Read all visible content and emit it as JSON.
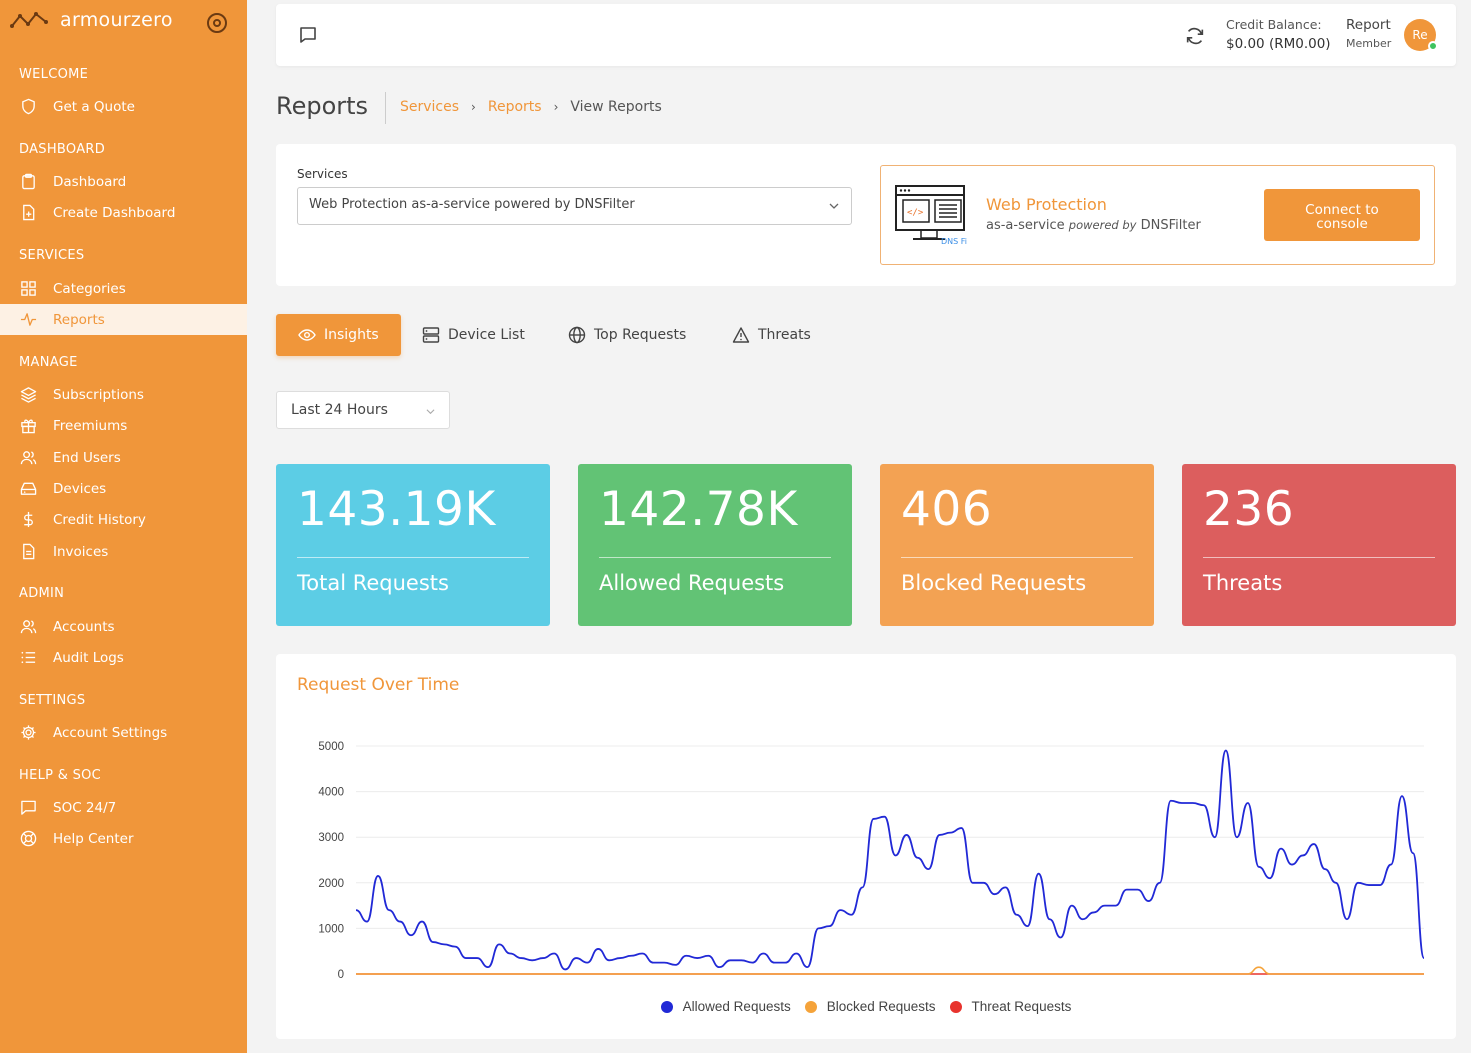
{
  "brand": {
    "name": "armourzero"
  },
  "sidebar": {
    "sections": [
      {
        "title": "WELCOME",
        "items": [
          {
            "label": "Get a Quote",
            "icon": "shield-icon"
          }
        ]
      },
      {
        "title": "DASHBOARD",
        "items": [
          {
            "label": "Dashboard",
            "icon": "clipboard-icon"
          },
          {
            "label": "Create Dashboard",
            "icon": "file-plus-icon"
          }
        ]
      },
      {
        "title": "SERVICES",
        "items": [
          {
            "label": "Categories",
            "icon": "grid-icon"
          },
          {
            "label": "Reports",
            "icon": "activity-icon",
            "active": true
          }
        ]
      },
      {
        "title": "MANAGE",
        "items": [
          {
            "label": "Subscriptions",
            "icon": "layers-icon"
          },
          {
            "label": "Freemiums",
            "icon": "gift-icon"
          },
          {
            "label": "End Users",
            "icon": "users-icon"
          },
          {
            "label": "Devices",
            "icon": "hard-drive-icon"
          },
          {
            "label": "Credit History",
            "icon": "dollar-icon"
          },
          {
            "label": "Invoices",
            "icon": "file-text-icon"
          }
        ]
      },
      {
        "title": "ADMIN",
        "items": [
          {
            "label": "Accounts",
            "icon": "users-icon"
          },
          {
            "label": "Audit Logs",
            "icon": "list-icon"
          }
        ]
      },
      {
        "title": "SETTINGS",
        "items": [
          {
            "label": "Account Settings",
            "icon": "gear-icon"
          }
        ]
      },
      {
        "title": "HELP & SOC",
        "items": [
          {
            "label": "SOC 24/7",
            "icon": "chat-icon"
          },
          {
            "label": "Help Center",
            "icon": "life-buoy-icon"
          }
        ]
      }
    ]
  },
  "topbar": {
    "credit_label": "Credit Balance:",
    "credit_value": "$0.00 (RM0.00)",
    "user_name": "Report",
    "user_role": "Member",
    "avatar_initials": "Re"
  },
  "page": {
    "title": "Reports",
    "breadcrumb": [
      "Services",
      "Reports",
      "View Reports"
    ]
  },
  "service": {
    "label": "Services",
    "selected": "Web Protection as-a-service powered by DNSFilter",
    "product_title": "Web Protection",
    "product_sub_prefix": "as-a-service",
    "product_sub_italic": "powered by",
    "product_sub_suffix": "DNSFilter",
    "logo_text": "DNS Filter",
    "connect_line1": "Connect to",
    "connect_line2": "console"
  },
  "tabs": [
    {
      "label": "Insights",
      "icon": "eye-icon",
      "active": true
    },
    {
      "label": "Device List",
      "icon": "server-icon"
    },
    {
      "label": "Top Requests",
      "icon": "globe-icon"
    },
    {
      "label": "Threats",
      "icon": "alert-triangle-icon"
    }
  ],
  "range": {
    "selected": "Last 24 Hours"
  },
  "stats": [
    {
      "value": "143.19K",
      "label": "Total Requests",
      "color": "#5ccde5"
    },
    {
      "value": "142.78K",
      "label": "Allowed Requests",
      "color": "#62c375"
    },
    {
      "value": "406",
      "label": "Blocked Requests",
      "color": "#f3a253"
    },
    {
      "value": "236",
      "label": "Threats",
      "color": "#dc5e5e"
    }
  ],
  "chart_data": {
    "type": "line",
    "title": "Request Over Time",
    "ylim": [
      0,
      5000
    ],
    "yticks": [
      0,
      1000,
      2000,
      3000,
      4000,
      5000
    ],
    "grid": true,
    "legend_position": "bottom",
    "series": [
      {
        "name": "Allowed Requests",
        "color": "#2129d6",
        "values": [
          1400,
          1150,
          2150,
          1400,
          1150,
          850,
          1150,
          700,
          650,
          600,
          350,
          350,
          150,
          650,
          450,
          350,
          300,
          350,
          450,
          100,
          350,
          250,
          550,
          300,
          350,
          400,
          450,
          250,
          250,
          200,
          400,
          350,
          400,
          150,
          300,
          300,
          250,
          450,
          250,
          250,
          450,
          150,
          1000,
          1050,
          1400,
          1300,
          1900,
          3400,
          3450,
          2600,
          3050,
          2550,
          2300,
          3050,
          3100,
          3200,
          2000,
          2000,
          1750,
          1900,
          1300,
          1050,
          2200,
          1200,
          800,
          1500,
          1200,
          1350,
          1500,
          1500,
          1850,
          1850,
          1600,
          2000,
          3800,
          3750,
          3750,
          3700,
          3000,
          4900,
          3000,
          3750,
          2350,
          2100,
          2750,
          2400,
          2600,
          2850,
          2300,
          2000,
          1200,
          2000,
          1950,
          1950,
          2400,
          3900,
          2650,
          350
        ]
      },
      {
        "name": "Blocked Requests",
        "color": "#f5a33a",
        "values": [
          0,
          0,
          0,
          0,
          0,
          0,
          0,
          0,
          0,
          0,
          0,
          0,
          0,
          0,
          0,
          0,
          0,
          0,
          0,
          0,
          0,
          0,
          0,
          0,
          0,
          0,
          0,
          0,
          0,
          0,
          0,
          0,
          0,
          0,
          0,
          0,
          0,
          0,
          0,
          0,
          0,
          0,
          0,
          0,
          0,
          0,
          0,
          0,
          0,
          0,
          0,
          0,
          0,
          0,
          0,
          0,
          0,
          0,
          0,
          0,
          0,
          0,
          0,
          0,
          0,
          0,
          0,
          0,
          0,
          0,
          0,
          0,
          0,
          0,
          0,
          0,
          0,
          0,
          0,
          0,
          0,
          0,
          150,
          0,
          0,
          0,
          0,
          0,
          0,
          0,
          0,
          0,
          0,
          0,
          0,
          0,
          0,
          0
        ]
      },
      {
        "name": "Threat Requests",
        "color": "#e8332d",
        "values": [
          0,
          0,
          0,
          0,
          0,
          0,
          0,
          0,
          0,
          0,
          0,
          0,
          0,
          0,
          0,
          0,
          0,
          0,
          0,
          0,
          0,
          0,
          0,
          0,
          0,
          0,
          0,
          0,
          0,
          0,
          0,
          0,
          0,
          0,
          0,
          0,
          0,
          0,
          0,
          0,
          0,
          0,
          0,
          0,
          0,
          0,
          0,
          0,
          0,
          0,
          0,
          0,
          0,
          0,
          0,
          0,
          0,
          0,
          0,
          0,
          0,
          0,
          0,
          0,
          0,
          0,
          0,
          0,
          0,
          0,
          0,
          0,
          0,
          0,
          0,
          0,
          0,
          0,
          0,
          0,
          0,
          0,
          0,
          0,
          0,
          0,
          0,
          0,
          0,
          0,
          0,
          0,
          0,
          0,
          0,
          0,
          0,
          0
        ]
      }
    ]
  }
}
